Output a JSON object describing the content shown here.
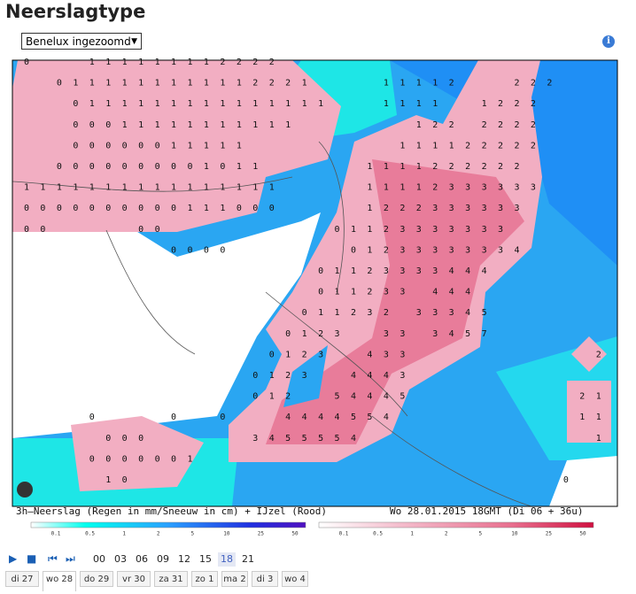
{
  "header": {
    "title": "Neerslagtype",
    "select": "Benelux ingezoomd",
    "info": "i"
  },
  "map": {
    "caption_left": "3h–Neerslag (Regen in mm/Sneeuw in cm) + IJzel (Rood)",
    "caption_right": "Wo 28.01.2015  18GMT (Di 06 + 36u)",
    "legend_rain": [
      0.1,
      0.5,
      1,
      2,
      5,
      10,
      25,
      50
    ],
    "legend_ice": [
      0.1,
      0.5,
      1,
      2,
      5,
      10,
      25,
      50
    ],
    "grid": [
      [
        0,
        null,
        null,
        null,
        1,
        1,
        1,
        1,
        1,
        1,
        1,
        1,
        2,
        2,
        2,
        2
      ],
      [
        null,
        null,
        0,
        1,
        1,
        1,
        1,
        1,
        1,
        1,
        1,
        1,
        1,
        1,
        2,
        2,
        2,
        1,
        null,
        null,
        null,
        null,
        1,
        1,
        1,
        1,
        2,
        null,
        null,
        null,
        2,
        2,
        2
      ],
      [
        null,
        null,
        null,
        0,
        1,
        1,
        1,
        1,
        1,
        1,
        1,
        1,
        1,
        1,
        1,
        1,
        1,
        1,
        1,
        null,
        null,
        null,
        1,
        1,
        1,
        1,
        null,
        null,
        1,
        2,
        2,
        2
      ],
      [
        null,
        null,
        null,
        0,
        0,
        0,
        1,
        1,
        1,
        1,
        1,
        1,
        1,
        1,
        1,
        1,
        1,
        null,
        null,
        null,
        null,
        null,
        null,
        null,
        1,
        2,
        2,
        null,
        2,
        2,
        2,
        2
      ],
      [
        null,
        null,
        null,
        0,
        0,
        0,
        0,
        0,
        0,
        1,
        1,
        1,
        1,
        1,
        null,
        null,
        null,
        null,
        null,
        null,
        null,
        null,
        null,
        1,
        1,
        1,
        1,
        2,
        2,
        2,
        2,
        2
      ],
      [
        null,
        null,
        0,
        0,
        0,
        0,
        0,
        0,
        0,
        0,
        0,
        1,
        0,
        1,
        1,
        null,
        null,
        null,
        null,
        null,
        null,
        1,
        1,
        1,
        1,
        2,
        2,
        2,
        2,
        2,
        2
      ],
      [
        1,
        1,
        1,
        1,
        1,
        1,
        1,
        1,
        1,
        1,
        1,
        1,
        1,
        1,
        1,
        1,
        null,
        null,
        null,
        null,
        null,
        1,
        1,
        1,
        1,
        2,
        3,
        3,
        3,
        3,
        3,
        3
      ],
      [
        0,
        0,
        0,
        0,
        0,
        0,
        0,
        0,
        0,
        0,
        1,
        1,
        1,
        0,
        0,
        0,
        null,
        null,
        null,
        null,
        null,
        1,
        2,
        2,
        2,
        3,
        3,
        3,
        3,
        3,
        3
      ],
      [
        0,
        0,
        null,
        null,
        null,
        null,
        null,
        0,
        0,
        null,
        null,
        null,
        null,
        null,
        null,
        null,
        null,
        null,
        null,
        0,
        1,
        1,
        2,
        3,
        3,
        3,
        3,
        3,
        3,
        3
      ],
      [
        null,
        null,
        null,
        null,
        null,
        null,
        null,
        null,
        null,
        0,
        0,
        0,
        0,
        null,
        null,
        null,
        null,
        null,
        null,
        null,
        0,
        1,
        2,
        3,
        3,
        3,
        3,
        3,
        3,
        3,
        4
      ],
      [
        null,
        null,
        null,
        null,
        null,
        null,
        null,
        null,
        null,
        null,
        null,
        null,
        null,
        null,
        null,
        null,
        null,
        null,
        0,
        1,
        1,
        2,
        3,
        3,
        3,
        3,
        4,
        4,
        4
      ],
      [
        null,
        null,
        null,
        null,
        null,
        null,
        null,
        null,
        null,
        null,
        null,
        null,
        null,
        null,
        null,
        null,
        null,
        null,
        0,
        1,
        1,
        2,
        3,
        3,
        null,
        4,
        4,
        4
      ],
      [
        null,
        null,
        null,
        null,
        null,
        null,
        null,
        null,
        null,
        null,
        null,
        null,
        null,
        null,
        null,
        null,
        null,
        0,
        1,
        1,
        2,
        3,
        2,
        null,
        3,
        3,
        3,
        4,
        5
      ],
      [
        null,
        null,
        null,
        null,
        null,
        null,
        null,
        null,
        null,
        null,
        null,
        null,
        null,
        null,
        null,
        null,
        0,
        1,
        2,
        3,
        null,
        null,
        3,
        3,
        null,
        3,
        4,
        5,
        7
      ],
      [
        null,
        null,
        null,
        null,
        null,
        null,
        null,
        null,
        null,
        null,
        null,
        null,
        null,
        null,
        null,
        0,
        1,
        2,
        3,
        null,
        null,
        4,
        3,
        3,
        null,
        null,
        null,
        null,
        null,
        null,
        null,
        null,
        null,
        null,
        null,
        2
      ],
      [
        null,
        null,
        null,
        null,
        null,
        null,
        null,
        null,
        null,
        null,
        null,
        null,
        null,
        null,
        0,
        1,
        2,
        3,
        null,
        null,
        4,
        4,
        4,
        3
      ],
      [
        null,
        null,
        null,
        null,
        null,
        null,
        null,
        null,
        null,
        null,
        null,
        null,
        null,
        null,
        0,
        1,
        2,
        null,
        null,
        5,
        4,
        4,
        4,
        5,
        null,
        null,
        null,
        null,
        null,
        null,
        null,
        null,
        null,
        null,
        2,
        1
      ],
      [
        null,
        null,
        null,
        null,
        0,
        null,
        null,
        null,
        null,
        0,
        null,
        null,
        0,
        null,
        null,
        null,
        4,
        4,
        4,
        4,
        5,
        5,
        4,
        null,
        null,
        null,
        null,
        null,
        null,
        null,
        null,
        null,
        null,
        null,
        1,
        1
      ],
      [
        null,
        null,
        null,
        null,
        null,
        0,
        0,
        0,
        null,
        null,
        null,
        null,
        null,
        null,
        3,
        4,
        5,
        5,
        5,
        5,
        4,
        null,
        null,
        null,
        null,
        null,
        null,
        null,
        null,
        null,
        null,
        null,
        null,
        null,
        null,
        1
      ],
      [
        null,
        null,
        null,
        null,
        0,
        0,
        0,
        0,
        0,
        0,
        1
      ],
      [
        null,
        null,
        null,
        null,
        null,
        1,
        0,
        null,
        null,
        null,
        null,
        null,
        null,
        null,
        null,
        null,
        null,
        null,
        null,
        null,
        null,
        null,
        null,
        null,
        null,
        null,
        null,
        null,
        null,
        null,
        null,
        null,
        null,
        0
      ]
    ]
  },
  "controls": {
    "times": [
      "00",
      "03",
      "06",
      "09",
      "12",
      "15",
      "18",
      "21"
    ],
    "active_time": "18",
    "days": [
      "di 27",
      "wo 28",
      "do 29",
      "vr 30",
      "za 31",
      "zo 1",
      "ma 2",
      "di 3",
      "wo 4"
    ],
    "active_day": "wo 28"
  }
}
